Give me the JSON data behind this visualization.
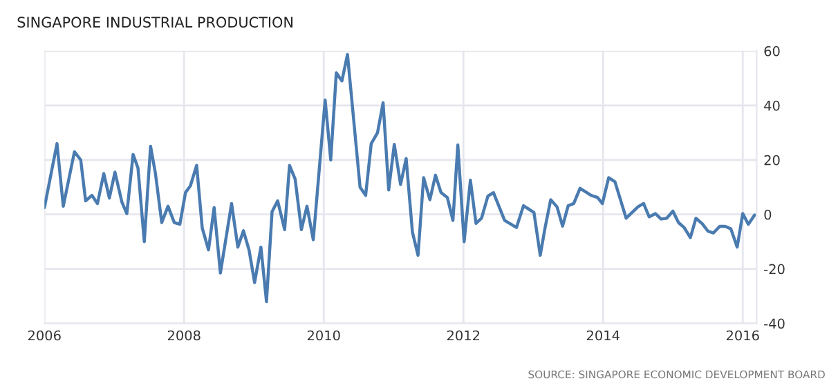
{
  "chart_data": {
    "type": "line",
    "title": "SINGAPORE INDUSTRIAL PRODUCTION",
    "x": [
      2006.0,
      2006.18,
      2006.27,
      2006.43,
      2006.52,
      2006.59,
      2006.68,
      2006.76,
      2006.85,
      2006.93,
      2007.01,
      2007.11,
      2007.18,
      2007.27,
      2007.34,
      2007.43,
      2007.52,
      2007.59,
      2007.68,
      2007.77,
      2007.86,
      2007.94,
      2008.02,
      2008.09,
      2008.18,
      2008.26,
      2008.35,
      2008.43,
      2008.52,
      2008.68,
      2008.77,
      2008.85,
      2008.93,
      2009.01,
      2009.1,
      2009.18,
      2009.26,
      2009.34,
      2009.44,
      2009.51,
      2009.59,
      2009.68,
      2009.76,
      2009.85,
      2010.02,
      2010.1,
      2010.18,
      2010.26,
      2010.34,
      2010.52,
      2010.6,
      2010.68,
      2010.77,
      2010.85,
      2010.93,
      2011.01,
      2011.1,
      2011.18,
      2011.27,
      2011.35,
      2011.43,
      2011.52,
      2011.6,
      2011.68,
      2011.77,
      2011.85,
      2011.92,
      2012.01,
      2012.1,
      2012.18,
      2012.26,
      2012.35,
      2012.43,
      2012.59,
      2012.76,
      2012.86,
      2013.01,
      2013.1,
      2013.17,
      2013.25,
      2013.34,
      2013.42,
      2013.5,
      2013.58,
      2013.67,
      2013.83,
      2013.92,
      2013.99,
      2014.08,
      2014.17,
      2014.33,
      2014.5,
      2014.58,
      2014.66,
      2014.75,
      2014.83,
      2014.91,
      2015.0,
      2015.08,
      2015.16,
      2015.25,
      2015.33,
      2015.42,
      2015.5,
      2015.58,
      2015.67,
      2015.75,
      2015.83,
      2015.92,
      2016.0,
      2016.08,
      2016.17
    ],
    "series": [
      {
        "color": "#4a7bb0",
        "values": [
          2.5,
          26,
          3,
          23,
          20,
          5,
          7,
          4,
          15,
          6,
          15.5,
          4.5,
          0.3,
          22,
          17,
          -10,
          25,
          15,
          -3,
          3,
          -3,
          -3.6,
          8,
          10.5,
          18,
          -5,
          -13,
          2.5,
          -21.5,
          4,
          -12,
          -6,
          -13,
          -25,
          -12,
          -32,
          1,
          5,
          -5.6,
          18,
          13,
          -5.6,
          3,
          -9.3,
          42,
          20,
          52,
          49,
          58.7,
          10,
          7,
          26,
          30,
          41,
          9,
          25.7,
          11,
          20.5,
          -6.5,
          -15,
          13.5,
          5.4,
          14.4,
          8,
          6.2,
          -2.2,
          25.5,
          -10,
          12.6,
          -3.3,
          -1.4,
          6.7,
          8,
          -2.2,
          -4.8,
          3.2,
          0.7,
          -15,
          -4.8,
          5.4,
          2.8,
          -4.3,
          3.2,
          4,
          9.6,
          7,
          6.2,
          4,
          13.5,
          12,
          -1.4,
          2.8,
          4,
          -0.9,
          0.3,
          -1.7,
          -1.4,
          1.2,
          -3,
          -4.8,
          -8.5,
          -1.4,
          -3.4,
          -6.1,
          -6.8,
          -4.4,
          -4.4,
          -5.3,
          -12,
          0.3,
          -3.6,
          -0.2
        ]
      }
    ],
    "xlim": [
      2006,
      2016.2
    ],
    "xticks": [
      2006,
      2008,
      2010,
      2012,
      2014,
      2016
    ],
    "ylim": [
      -40,
      60
    ],
    "yticks": [
      -40,
      -20,
      0,
      20,
      40,
      60
    ],
    "grid": true,
    "legend": false,
    "marker": "none",
    "line_style": "solid",
    "annotations": [
      "SOURCE: SINGAPORE ECONOMIC DEVELOPMENT BOARD"
    ]
  }
}
